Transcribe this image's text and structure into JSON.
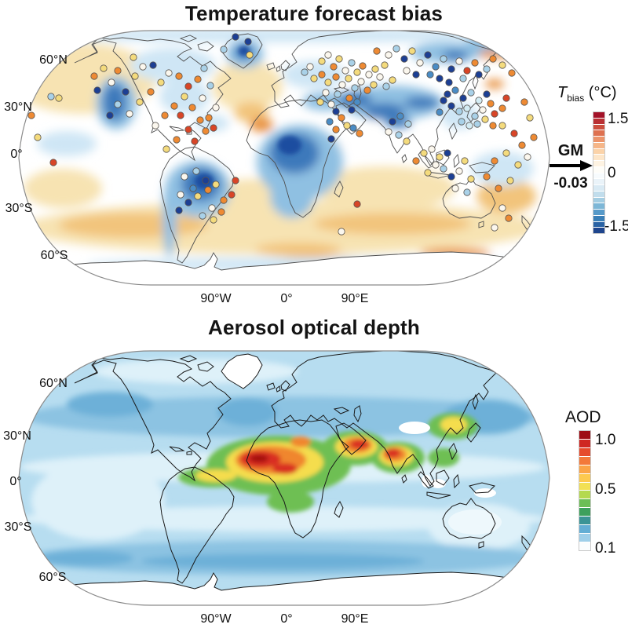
{
  "panels": [
    {
      "id": "temperature-bias",
      "title": "Temperature forecast bias",
      "lat_labels": [
        "60°N",
        "30°N",
        "0°",
        "30°S",
        "60°S"
      ],
      "lon_labels": [
        "90°W",
        "0°",
        "90°E"
      ],
      "colorbar": {
        "title_var": "T",
        "title_sub": "bias",
        "title_unit": "(°C)",
        "tick_labels": [
          "1.5",
          "0",
          "-1.5"
        ],
        "value_range": [
          -1.5,
          1.5
        ],
        "colors": [
          "#a31228",
          "#b92f33",
          "#cc4e3e",
          "#de7150",
          "#ec946b",
          "#f6b688",
          "#fbd3a9",
          "#fde6c9",
          "#fef3e2",
          "#fefdf8",
          "#f7fbfd",
          "#eaf3f9",
          "#d9eaf4",
          "#c1ddec",
          "#a3cde2",
          "#7db7d7",
          "#579ac9",
          "#3a7fb7",
          "#2a63a4",
          "#1e458d"
        ]
      },
      "annotation": {
        "label": "GM",
        "value": "-0.03"
      },
      "stations": {
        "palette": {
          "o": "#ee8a33",
          "r": "#d84527",
          "y": "#f4db7d",
          "w": "#fbf7ee",
          "lb": "#a9d1e8",
          "cy": "#d3ecf4",
          "mb": "#4a8cc5",
          "db": "#1c3f94"
        },
        "dots": [
          [
            100,
            62,
            "o"
          ],
          [
            112,
            52,
            "y"
          ],
          [
            104,
            80,
            "db"
          ],
          [
            122,
            70,
            "w"
          ],
          [
            130,
            55,
            "o"
          ],
          [
            140,
            82,
            "db"
          ],
          [
            152,
            62,
            "y"
          ],
          [
            162,
            50,
            "w"
          ],
          [
            130,
            98,
            "lb"
          ],
          [
            120,
            112,
            "db"
          ],
          [
            145,
            110,
            "w"
          ],
          [
            158,
            95,
            "y"
          ],
          [
            172,
            82,
            "o"
          ],
          [
            185,
            70,
            "y"
          ],
          [
            195,
            58,
            "w"
          ],
          [
            208,
            62,
            "o"
          ],
          [
            220,
            75,
            "r"
          ],
          [
            232,
            66,
            "o"
          ],
          [
            215,
            88,
            "y"
          ],
          [
            202,
            100,
            "o"
          ],
          [
            190,
            112,
            "o"
          ],
          [
            178,
            125,
            "w"
          ],
          [
            210,
            112,
            "r"
          ],
          [
            225,
            102,
            "o"
          ],
          [
            238,
            90,
            "w"
          ],
          [
            248,
            74,
            "lb"
          ],
          [
            235,
            118,
            "o"
          ],
          [
            220,
            130,
            "r"
          ],
          [
            205,
            143,
            "o"
          ],
          [
            192,
            155,
            "y"
          ],
          [
            228,
            145,
            "r"
          ],
          [
            242,
            132,
            "o"
          ],
          [
            150,
            38,
            "y"
          ],
          [
            175,
            48,
            "db"
          ],
          [
            240,
            52,
            "lb"
          ],
          [
            255,
            102,
            "w"
          ],
          [
            246,
            115,
            "o"
          ],
          [
            252,
            128,
            "r"
          ],
          [
            280,
            12,
            "db"
          ],
          [
            265,
            28,
            "lb"
          ],
          [
            298,
            35,
            "y"
          ],
          [
            296,
            18,
            "db"
          ],
          [
            45,
            88,
            "lb"
          ],
          [
            55,
            90,
            "y"
          ],
          [
            20,
            112,
            "o"
          ],
          [
            48,
            172,
            "r"
          ],
          [
            28,
            140,
            "y"
          ],
          [
            215,
            190,
            "w"
          ],
          [
            230,
            183,
            "lb"
          ],
          [
            242,
            195,
            "db"
          ],
          [
            226,
            205,
            "mb"
          ],
          [
            210,
            213,
            "w"
          ],
          [
            220,
            223,
            "db"
          ],
          [
            208,
            233,
            "db"
          ],
          [
            232,
            215,
            "y"
          ],
          [
            245,
            207,
            "o"
          ],
          [
            255,
            200,
            "y"
          ],
          [
            265,
            220,
            "o"
          ],
          [
            275,
            213,
            "r"
          ],
          [
            250,
            230,
            "w"
          ],
          [
            238,
            240,
            "lb"
          ],
          [
            280,
            195,
            "r"
          ],
          [
            262,
            235,
            "o"
          ],
          [
            252,
            245,
            "y"
          ],
          [
            390,
            43,
            "y"
          ],
          [
            398,
            35,
            "w"
          ],
          [
            405,
            50,
            "o"
          ],
          [
            412,
            40,
            "y"
          ],
          [
            420,
            55,
            "w"
          ],
          [
            428,
            45,
            "lb"
          ],
          [
            435,
            57,
            "y"
          ],
          [
            442,
            49,
            "o"
          ],
          [
            450,
            60,
            "w"
          ],
          [
            458,
            53,
            "y"
          ],
          [
            390,
            60,
            "o"
          ],
          [
            398,
            70,
            "y"
          ],
          [
            408,
            63,
            "o"
          ],
          [
            416,
            73,
            "w"
          ],
          [
            424,
            65,
            "y"
          ],
          [
            432,
            77,
            "lb"
          ],
          [
            440,
            69,
            "w"
          ],
          [
            448,
            80,
            "o"
          ],
          [
            456,
            73,
            "y"
          ],
          [
            464,
            63,
            "w"
          ],
          [
            472,
            75,
            "lb"
          ],
          [
            480,
            67,
            "y"
          ],
          [
            395,
            83,
            "w"
          ],
          [
            410,
            85,
            "lb"
          ],
          [
            425,
            90,
            "o"
          ],
          [
            375,
            50,
            "w"
          ],
          [
            380,
            65,
            "y"
          ],
          [
            368,
            57,
            "lb"
          ],
          [
            388,
            95,
            "y"
          ],
          [
            402,
            98,
            "w"
          ],
          [
            435,
            95,
            "mb"
          ],
          [
            428,
            105,
            "db"
          ],
          [
            415,
            115,
            "o"
          ],
          [
            408,
            107,
            "db"
          ],
          [
            422,
            125,
            "y"
          ],
          [
            400,
            120,
            "mb"
          ],
          [
            438,
            135,
            "o"
          ],
          [
            430,
            128,
            "mb"
          ],
          [
            475,
            35,
            "w"
          ],
          [
            485,
            27,
            "lb"
          ],
          [
            495,
            40,
            "db"
          ],
          [
            505,
            30,
            "y"
          ],
          [
            515,
            45,
            "w"
          ],
          [
            525,
            35,
            "db"
          ],
          [
            535,
            50,
            "mb"
          ],
          [
            545,
            40,
            "lb"
          ],
          [
            555,
            53,
            "db"
          ],
          [
            565,
            43,
            "w"
          ],
          [
            575,
            55,
            "r"
          ],
          [
            585,
            45,
            "o"
          ],
          [
            540,
            65,
            "db"
          ],
          [
            528,
            60,
            "mb"
          ],
          [
            552,
            70,
            "db"
          ],
          [
            570,
            65,
            "lb"
          ],
          [
            590,
            60,
            "db"
          ],
          [
            600,
            53,
            "lb"
          ],
          [
            510,
            60,
            "db"
          ],
          [
            498,
            55,
            "w"
          ],
          [
            460,
            30,
            "o"
          ],
          [
            470,
            48,
            "y"
          ],
          [
            550,
            85,
            "db"
          ],
          [
            560,
            80,
            "mb"
          ],
          [
            570,
            90,
            "db"
          ],
          [
            580,
            83,
            "lb"
          ],
          [
            590,
            93,
            "cy"
          ],
          [
            600,
            85,
            "db"
          ],
          [
            555,
            100,
            "db"
          ],
          [
            565,
            107,
            "lb"
          ],
          [
            575,
            103,
            "cy"
          ],
          [
            585,
            113,
            "lb"
          ],
          [
            595,
            105,
            "w"
          ],
          [
            605,
            97,
            "o"
          ],
          [
            610,
            110,
            "r"
          ],
          [
            568,
            120,
            "lb"
          ],
          [
            578,
            125,
            "cy"
          ],
          [
            588,
            123,
            "lb"
          ],
          [
            598,
            117,
            "y"
          ],
          [
            608,
            125,
            "o"
          ],
          [
            620,
            103,
            "o"
          ],
          [
            625,
            90,
            "r"
          ],
          [
            545,
            93,
            "db"
          ],
          [
            540,
            108,
            "mb"
          ],
          [
            480,
            120,
            "db"
          ],
          [
            490,
            113,
            "mb"
          ],
          [
            500,
            123,
            "lb"
          ],
          [
            475,
            133,
            "w"
          ],
          [
            488,
            137,
            "lb"
          ],
          [
            498,
            145,
            "y"
          ],
          [
            520,
            160,
            "y"
          ],
          [
            530,
            155,
            "w"
          ],
          [
            540,
            165,
            "y"
          ],
          [
            550,
            160,
            "db"
          ],
          [
            535,
            175,
            "w"
          ],
          [
            545,
            180,
            "lb"
          ],
          [
            525,
            185,
            "y"
          ],
          [
            555,
            190,
            "db"
          ],
          [
            565,
            183,
            "w"
          ],
          [
            572,
            170,
            "y"
          ],
          [
            510,
            170,
            "o"
          ],
          [
            580,
            193,
            "y"
          ],
          [
            560,
            205,
            "w"
          ],
          [
            575,
            210,
            "lb"
          ],
          [
            620,
            125,
            "y"
          ],
          [
            635,
            135,
            "r"
          ],
          [
            645,
            150,
            "o"
          ],
          [
            625,
            160,
            "y"
          ],
          [
            610,
            170,
            "o"
          ],
          [
            640,
            175,
            "y"
          ],
          [
            652,
            165,
            "w"
          ],
          [
            600,
            190,
            "o"
          ],
          [
            630,
            195,
            "y"
          ],
          [
            615,
            205,
            "o"
          ],
          [
            660,
            140,
            "o"
          ],
          [
            655,
            115,
            "y"
          ],
          [
            648,
            95,
            "o"
          ],
          [
            608,
            40,
            "o"
          ],
          [
            620,
            48,
            "y"
          ],
          [
            632,
            58,
            "o"
          ],
          [
            408,
            130,
            "o"
          ],
          [
            402,
            142,
            "db"
          ],
          [
            435,
            225,
            "r"
          ],
          [
            415,
            260,
            "w"
          ],
          [
            620,
            230,
            "w"
          ],
          [
            628,
            243,
            "o"
          ],
          [
            610,
            255,
            "w"
          ]
        ]
      }
    },
    {
      "id": "aerosol-optical-depth",
      "title": "Aerosol optical depth",
      "lat_labels": [
        "60°N",
        "30°N",
        "0°",
        "30°S",
        "60°S"
      ],
      "lon_labels": [
        "90°W",
        "0°",
        "90°E"
      ],
      "colorbar": {
        "title": "AOD",
        "tick_labels": [
          "1.0",
          "0.5",
          "0.1"
        ],
        "value_range": [
          0.1,
          1.0
        ],
        "colors": [
          "#9e0d15",
          "#cf2722",
          "#e64b2c",
          "#f3793a",
          "#fba447",
          "#fdc94f",
          "#f2e054",
          "#b4d94f",
          "#6cbe56",
          "#3da05c",
          "#3b9495",
          "#64aed4",
          "#9fcfe9",
          "#fbfdfe"
        ]
      }
    }
  ]
}
